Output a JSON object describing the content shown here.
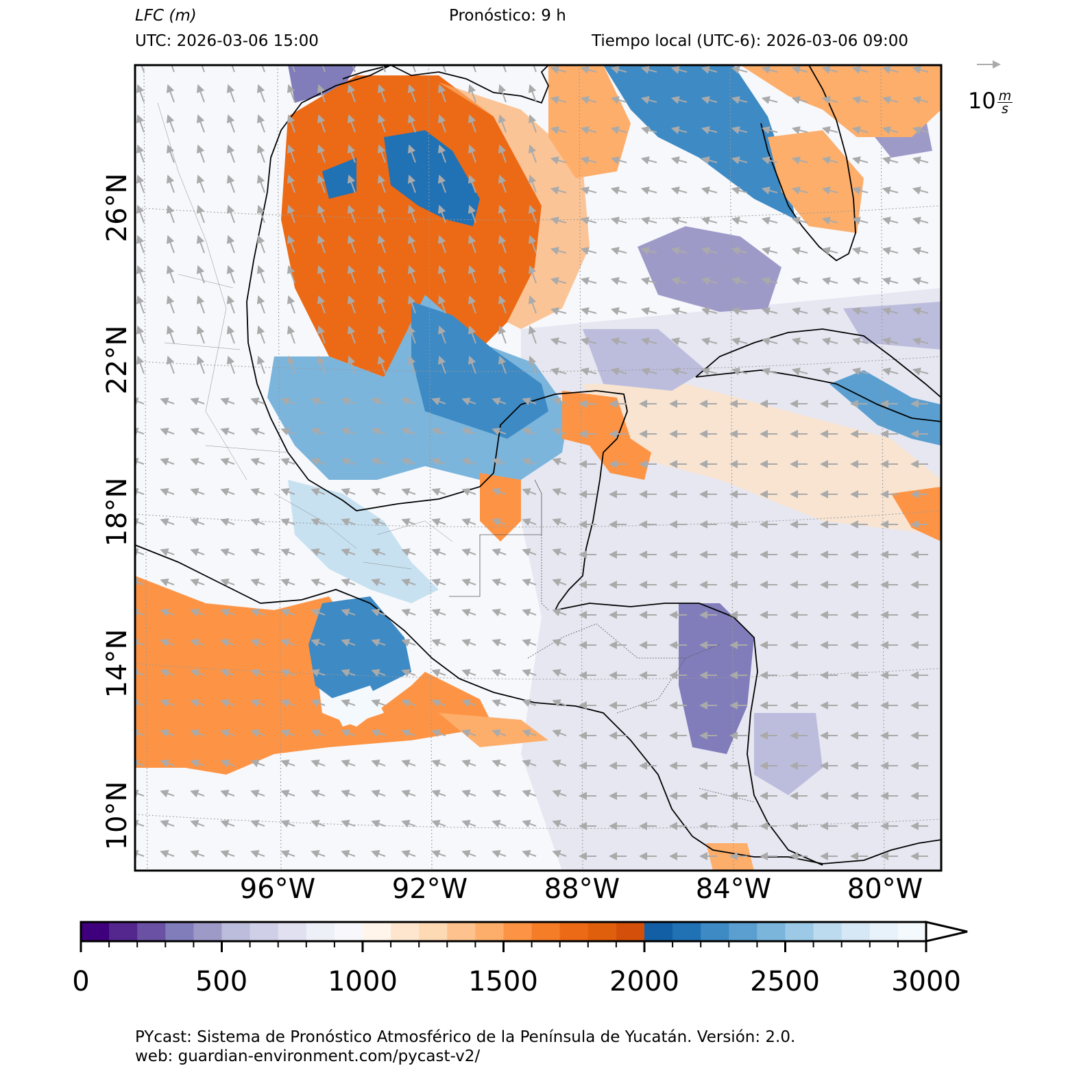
{
  "header": {
    "variable": "LFC (m)",
    "forecast": "Pronóstico: 9 h",
    "utc": "UTC:  2026-03-06 15:00",
    "local": "Tiempo local (UTC-6): 2026-03-06 09:00"
  },
  "map": {
    "lat_labels": [
      "26°N",
      "22°N",
      "18°N",
      "14°N",
      "10°N"
    ],
    "lon_labels": [
      "96°W",
      "92°W",
      "88°W",
      "84°W",
      "80°W"
    ],
    "wind_reference": {
      "value": "10",
      "unit_num": "m",
      "unit_den": "s"
    },
    "field_colors": {
      "coast": "#000000",
      "wind_arrow": "#aaaaaa",
      "grid": "#999999"
    }
  },
  "colorbar": {
    "min": 0,
    "max": 3000,
    "step": 100,
    "tick_labels": [
      "0",
      "500",
      "1000",
      "1500",
      "2000",
      "2500",
      "3000"
    ],
    "extend": "max",
    "colors": [
      "#3f007d",
      "#54278f",
      "#6a51a3",
      "#807dba",
      "#9e9ac8",
      "#bcbddc",
      "#cfd0e8",
      "#e0e0f0",
      "#eef0f8",
      "#f8f8fc",
      "#fff5eb",
      "#fee6ce",
      "#fdd9b4",
      "#fdc28d",
      "#fdae6b",
      "#fd9445",
      "#f67d28",
      "#ec6a15",
      "#e05f0c",
      "#d4500a",
      "#135fa6",
      "#2171b5",
      "#3d8ac4",
      "#5a9fd0",
      "#7bb5dc",
      "#9ccae6",
      "#bcdbee",
      "#d6e8f5",
      "#e8f2fa",
      "#f4f9fd"
    ]
  },
  "footer": {
    "line1": "PYcast: Sistema de Pronóstico Atmosférico de la Península de Yucatán. Versión: 2.0.",
    "line2": "web: guardian-environment.com/pycast-v2/"
  }
}
